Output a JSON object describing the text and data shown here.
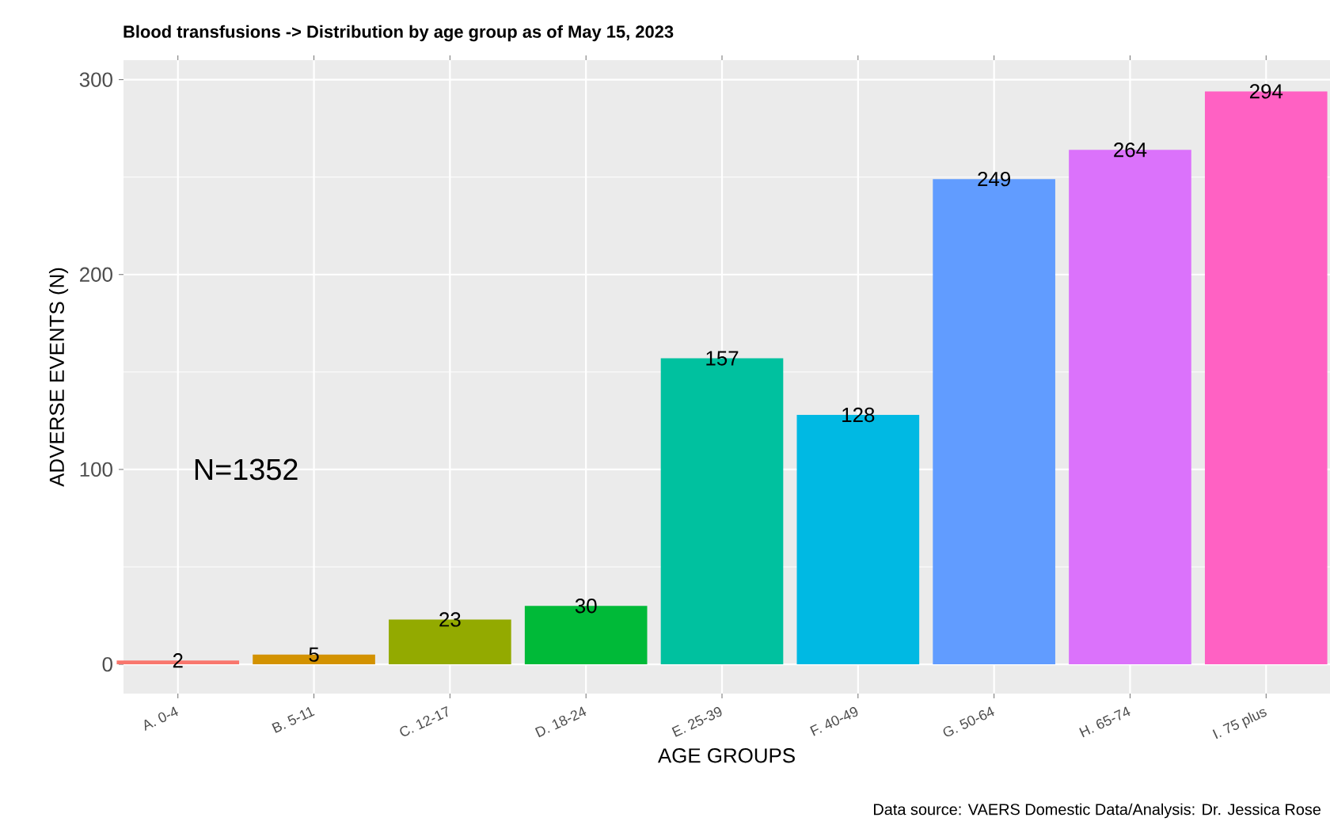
{
  "chart_data": {
    "type": "bar",
    "title": "Blood transfusions -> Distribution by age group as of May 15, 2023",
    "xlabel": "AGE GROUPS",
    "ylabel": "ADVERSE EVENTS (N)",
    "categories": [
      "A. 0-4",
      "B. 5-11",
      "C. 12-17",
      "D. 18-24",
      "E. 25-39",
      "F. 40-49",
      "G. 50-64",
      "H. 65-74",
      "I. 75 plus"
    ],
    "values": [
      2,
      5,
      23,
      30,
      157,
      128,
      249,
      264,
      294
    ],
    "colors": [
      "#f8766d",
      "#d39200",
      "#93aa00",
      "#00ba38",
      "#00c19f",
      "#00b9e3",
      "#619cff",
      "#db72fb",
      "#ff61c3"
    ],
    "ylim": [
      -15,
      310
    ],
    "yticks": [
      0,
      100,
      200,
      300
    ],
    "grid": true,
    "data_labels": true,
    "annotations": [
      "N=1352",
      "Data source: VAERS Domestic Data/Analysis: Dr. Jessica Rose"
    ]
  }
}
